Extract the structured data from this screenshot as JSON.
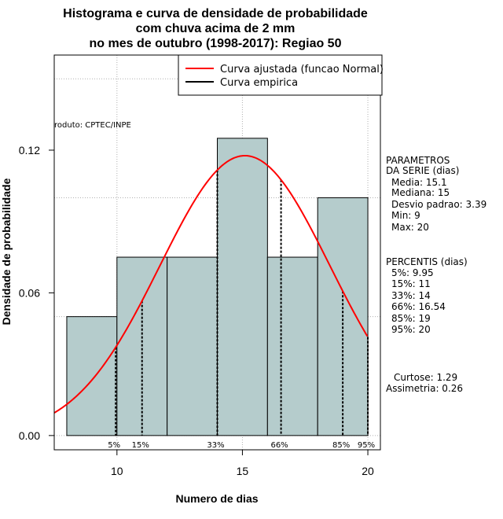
{
  "title_lines": [
    "Histograma e curva de densidade de probabilidade",
    "com chuva acima de 2 mm",
    "no mes de outubro (1998-2017): Regiao 50"
  ],
  "credit": "roduto: CPTEC/INPE",
  "legend": {
    "fitted": "Curva ajustada (funcao Normal)",
    "empirical": "Curva empirica"
  },
  "colors": {
    "bar_fill": "#b5cccc",
    "fitted_curve": "#ff0000",
    "grid": "#b0b0b0"
  },
  "side_panel": {
    "params_title": [
      "PARAMETROS",
      "DA SERIE (dias)"
    ],
    "params": [
      "Media: 15.1",
      "Mediana: 15",
      "Desvio padrao: 3.39",
      "Min: 9",
      "Max: 20"
    ],
    "percentis_title": "PERCENTIS (dias)",
    "percentis": [
      "5%: 9.95",
      "15%: 11",
      "33%: 14",
      "66%: 16.54",
      "85%: 19",
      "95%: 20"
    ],
    "stats": [
      "Curtose: 1.29",
      "Assimetria: 0.26"
    ]
  },
  "chart_data": {
    "type": "bar",
    "xlabel": "Numero de dias",
    "ylabel": "Densidade de probabilidade",
    "xlim": [
      7.5,
      20.5
    ],
    "ylim": [
      -0.006,
      0.16
    ],
    "xticks": [
      10,
      15,
      20
    ],
    "yticks": [
      0.0,
      0.06,
      0.12
    ],
    "ytick_labels": [
      "0.00",
      "0.06",
      "0.12"
    ],
    "grid": true,
    "bins": [
      {
        "x0": 8,
        "x1": 10,
        "density": 0.05
      },
      {
        "x0": 10,
        "x1": 12,
        "density": 0.075
      },
      {
        "x0": 12,
        "x1": 14,
        "density": 0.075
      },
      {
        "x0": 14,
        "x1": 16,
        "density": 0.125
      },
      {
        "x0": 16,
        "x1": 18,
        "density": 0.075
      },
      {
        "x0": 18,
        "x1": 20,
        "density": 0.1
      }
    ],
    "normal_fit": {
      "mean": 15.1,
      "sd": 3.39
    },
    "percentile_lines": [
      {
        "label": "5%",
        "x": 9.95
      },
      {
        "label": "15%",
        "x": 11
      },
      {
        "label": "33%",
        "x": 14
      },
      {
        "label": "66%",
        "x": 16.54
      },
      {
        "label": "85%",
        "x": 19
      },
      {
        "label": "95%",
        "x": 20
      }
    ]
  }
}
